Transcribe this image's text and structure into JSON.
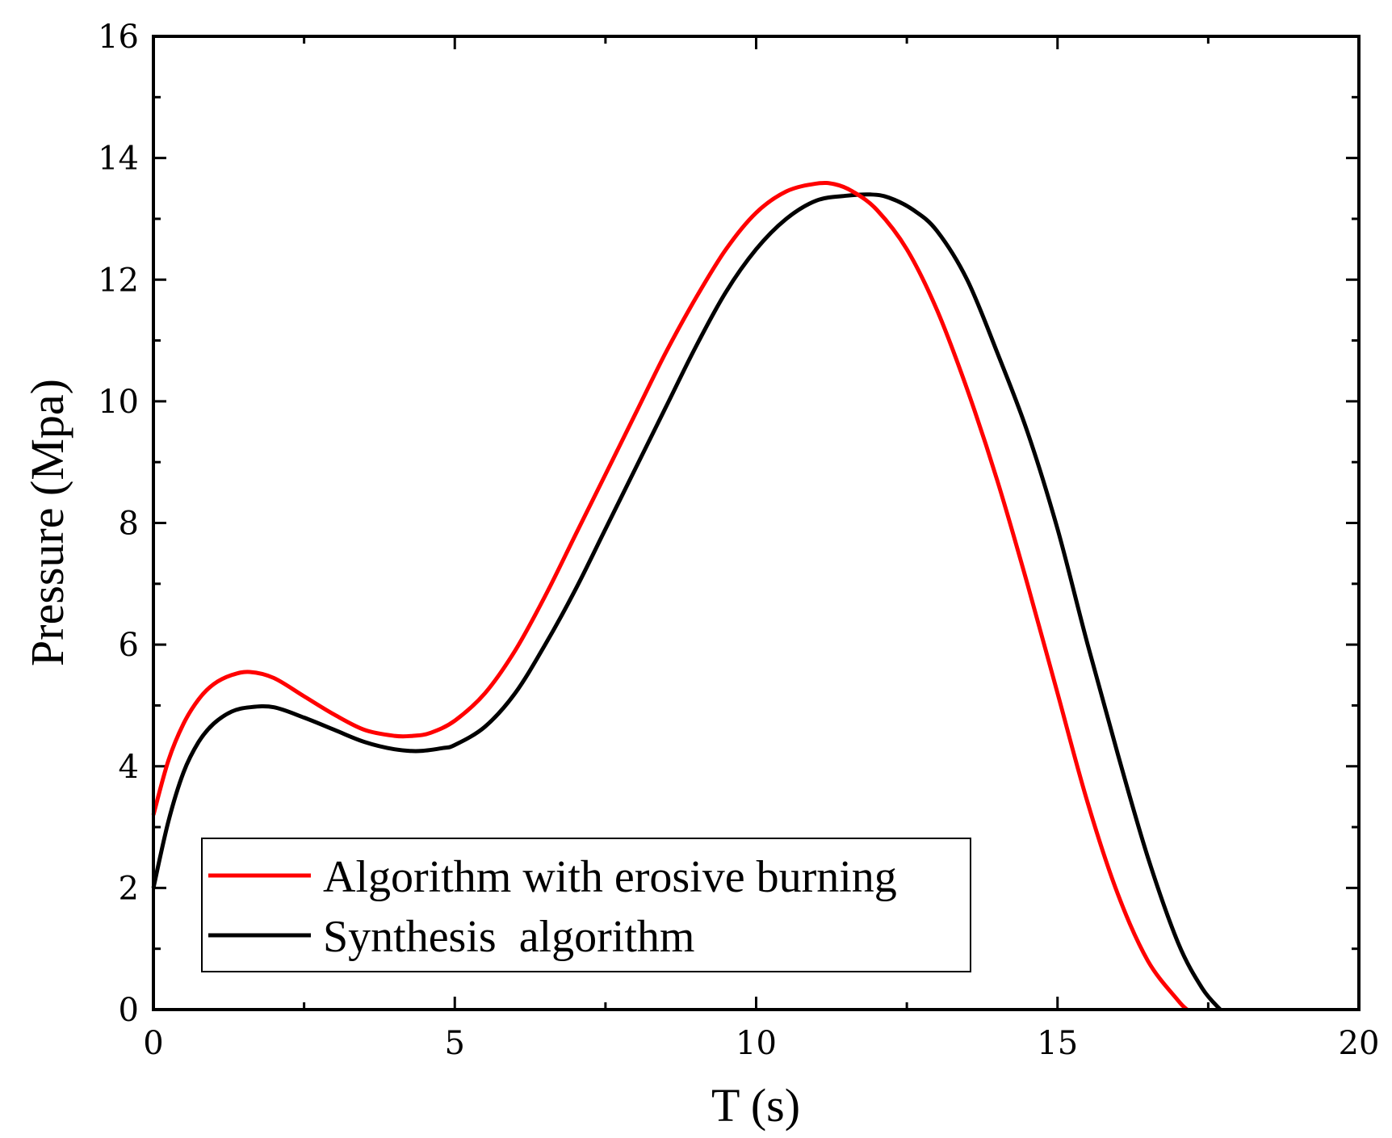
{
  "chart_data": {
    "type": "line",
    "title": "",
    "xlabel": "T (s)",
    "ylabel": "Pressure (Mpa)",
    "xlim": [
      0,
      20
    ],
    "ylim": [
      0,
      16
    ],
    "xticks": [
      0,
      5,
      10,
      15,
      20
    ],
    "yticks": [
      0,
      2,
      4,
      6,
      8,
      10,
      12,
      14,
      16
    ],
    "xtick_labels": [
      "0",
      "5",
      "10",
      "15",
      "20"
    ],
    "ytick_labels": [
      "0",
      "2",
      "4",
      "6",
      "8",
      "10",
      "12",
      "14",
      "16"
    ],
    "grid": false,
    "legend_position": "bottom-left",
    "series": [
      {
        "name": "Algorithm with erosive burning",
        "color": "#ff0000",
        "x": [
          0,
          0.25,
          0.5,
          0.75,
          1.0,
          1.3,
          1.6,
          2.0,
          2.5,
          3.0,
          3.5,
          4.0,
          4.3,
          4.6,
          5.0,
          5.5,
          6.0,
          6.5,
          7.0,
          7.5,
          8.0,
          8.5,
          9.0,
          9.5,
          10.0,
          10.5,
          11.0,
          11.3,
          11.6,
          12.0,
          12.5,
          13.0,
          13.5,
          14.0,
          14.5,
          15.0,
          15.5,
          16.0,
          16.5,
          17.0,
          17.15
        ],
        "y": [
          3.2,
          4.1,
          4.7,
          5.1,
          5.35,
          5.5,
          5.55,
          5.45,
          5.15,
          4.85,
          4.6,
          4.5,
          4.5,
          4.55,
          4.75,
          5.2,
          5.9,
          6.8,
          7.8,
          8.8,
          9.8,
          10.8,
          11.7,
          12.5,
          13.1,
          13.45,
          13.58,
          13.57,
          13.45,
          13.15,
          12.5,
          11.5,
          10.2,
          8.7,
          7.0,
          5.2,
          3.4,
          1.9,
          0.8,
          0.15,
          0.0
        ]
      },
      {
        "name": "Synthesis  algorithm",
        "color": "#000000",
        "x": [
          0,
          0.25,
          0.5,
          0.75,
          1.0,
          1.3,
          1.6,
          2.0,
          2.5,
          3.0,
          3.5,
          4.0,
          4.4,
          4.8,
          5.0,
          5.5,
          6.0,
          6.5,
          7.0,
          7.5,
          8.0,
          8.5,
          9.0,
          9.5,
          10.0,
          10.5,
          11.0,
          11.5,
          11.9,
          12.2,
          12.6,
          13.0,
          13.5,
          14.0,
          14.5,
          15.0,
          15.5,
          16.0,
          16.5,
          17.0,
          17.4,
          17.7
        ],
        "y": [
          2.0,
          3.1,
          3.9,
          4.4,
          4.7,
          4.9,
          4.97,
          4.97,
          4.8,
          4.6,
          4.4,
          4.28,
          4.25,
          4.3,
          4.35,
          4.65,
          5.2,
          6.0,
          6.9,
          7.9,
          8.9,
          9.9,
          10.9,
          11.8,
          12.5,
          13.0,
          13.3,
          13.38,
          13.4,
          13.35,
          13.15,
          12.8,
          12.0,
          10.8,
          9.5,
          7.9,
          6.0,
          4.2,
          2.5,
          1.1,
          0.35,
          0.0
        ]
      }
    ]
  }
}
